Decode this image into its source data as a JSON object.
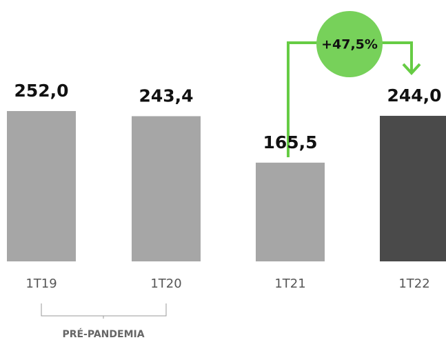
{
  "chart_data": {
    "type": "bar",
    "categories": [
      "1T19",
      "1T20",
      "1T21",
      "1T22"
    ],
    "values": [
      252.0,
      243.4,
      165.5,
      244.0
    ],
    "value_labels": [
      "252,0",
      "243,4",
      "165,5",
      "244,0"
    ],
    "colors": [
      "#a6a6a6",
      "#a6a6a6",
      "#a6a6a6",
      "#4a4a4a"
    ],
    "change_annotation": "+47,5%",
    "group_label": "PRÉ-PANDEMIA"
  }
}
